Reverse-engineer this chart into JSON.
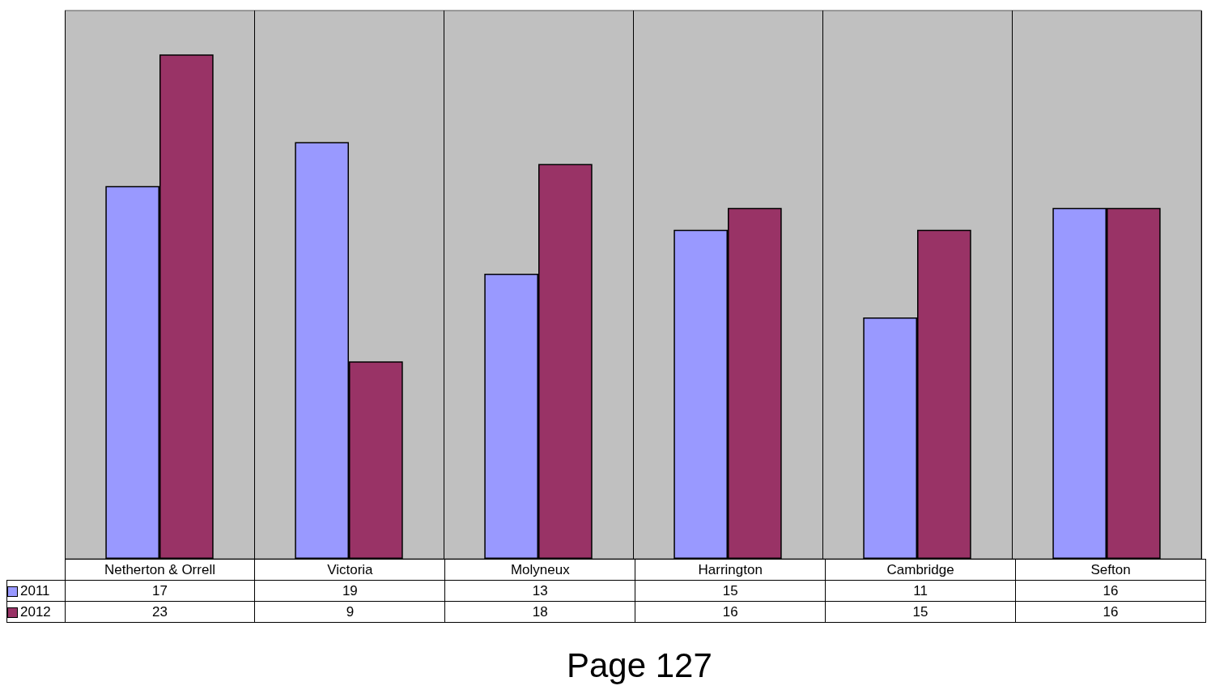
{
  "chart_data": {
    "type": "bar",
    "categories": [
      "Netherton & Orrell",
      "Victoria",
      "Molyneux",
      "Harrington",
      "Cambridge",
      "Sefton"
    ],
    "series": [
      {
        "name": "2011",
        "color": "#9999ff",
        "values": [
          17,
          19,
          13,
          15,
          11,
          16
        ]
      },
      {
        "name": "2012",
        "color": "#993366",
        "values": [
          23,
          9,
          18,
          16,
          15,
          16
        ]
      }
    ],
    "data_labels": true,
    "legend": "bottom left",
    "grid": "x",
    "annotations": [
      "Page 127"
    ]
  }
}
